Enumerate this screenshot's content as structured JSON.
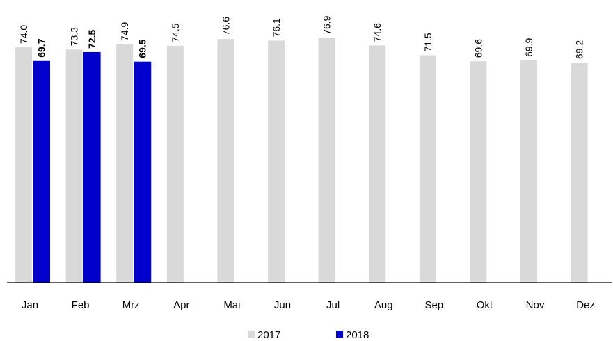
{
  "chart_data": {
    "type": "bar",
    "categories": [
      "Jan",
      "Feb",
      "Mrz",
      "Apr",
      "Mai",
      "Jun",
      "Jul",
      "Aug",
      "Sep",
      "Okt",
      "Nov",
      "Dez"
    ],
    "series": [
      {
        "name": "2017",
        "color": "#d9d9d9",
        "values": [
          74.0,
          73.3,
          74.9,
          74.5,
          76.6,
          76.1,
          76.9,
          74.6,
          71.5,
          69.6,
          69.9,
          69.2
        ],
        "value_labels": [
          "74.0",
          "73.3",
          "74.9",
          "74.5",
          "76.6",
          "76.1",
          "76.9",
          "74.6",
          "71.5",
          "69.6",
          "69.9",
          "69.2"
        ]
      },
      {
        "name": "2018",
        "color": "#0000cc",
        "values": [
          69.7,
          72.5,
          69.5,
          null,
          null,
          null,
          null,
          null,
          null,
          null,
          null,
          null
        ],
        "value_labels": [
          "69.7",
          "72.5",
          "69.5",
          null,
          null,
          null,
          null,
          null,
          null,
          null,
          null,
          null
        ]
      }
    ],
    "legend": "bottom"
  }
}
